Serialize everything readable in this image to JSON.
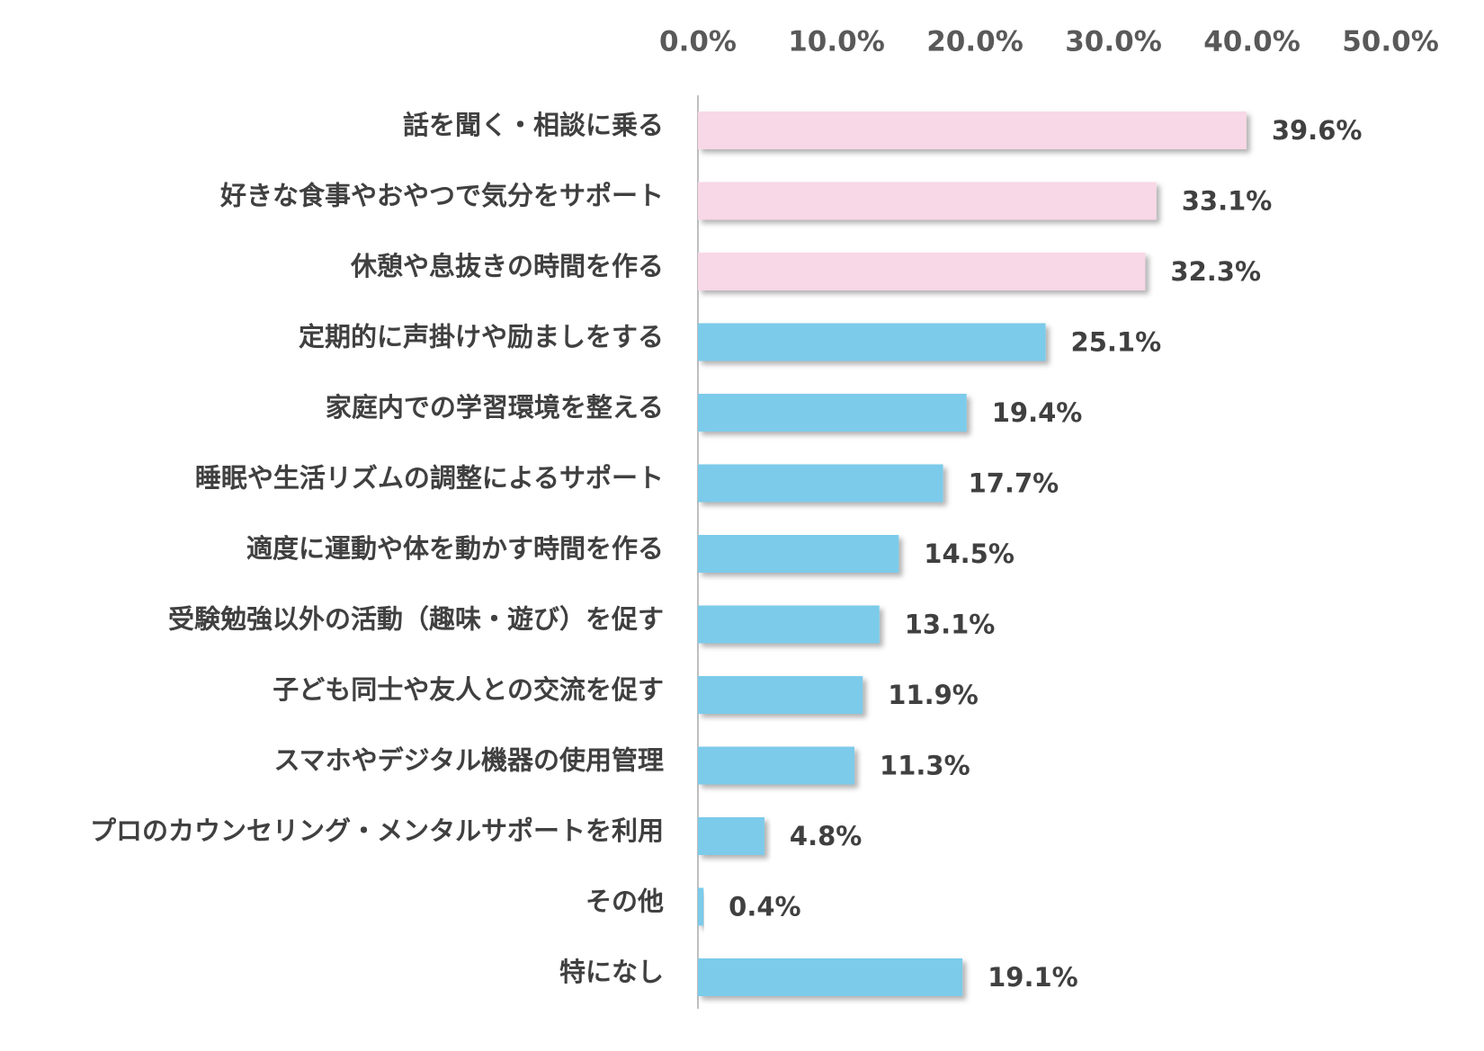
{
  "chart_data": {
    "type": "bar",
    "orientation": "horizontal",
    "categories": [
      "話を聞く・相談に乗る",
      "好きな食事やおやつで気分をサポート",
      "休憩や息抜きの時間を作る",
      "定期的に声掛けや励ましをする",
      "家庭内での学習環境を整える",
      "睡眠や生活リズムの調整によるサポート",
      "適度に運動や体を動かす時間を作る",
      "受験勉強以外の活動（趣味・遊び）を促す",
      "子ども同士や友人との交流を促す",
      "スマホやデジタル機器の使用管理",
      "プロのカウンセリング・メンタルサポートを利用",
      "その他",
      "特になし"
    ],
    "values": [
      39.6,
      33.1,
      32.3,
      25.1,
      19.4,
      17.7,
      14.5,
      13.1,
      11.9,
      11.3,
      4.8,
      0.4,
      19.1
    ],
    "value_labels": [
      "39.6%",
      "33.1%",
      "32.3%",
      "25.1%",
      "19.4%",
      "17.7%",
      "14.5%",
      "13.1%",
      "11.9%",
      "11.3%",
      "4.8%",
      "0.4%",
      "19.1%"
    ],
    "colors": [
      "#f8d7e6",
      "#f8d7e6",
      "#f8d7e6",
      "#7ccbea",
      "#7ccbea",
      "#7ccbea",
      "#7ccbea",
      "#7ccbea",
      "#7ccbea",
      "#7ccbea",
      "#7ccbea",
      "#7ccbea",
      "#7ccbea"
    ],
    "xlim": [
      0,
      50
    ],
    "xticks": [
      {
        "value": 0,
        "label": "0.0%"
      },
      {
        "value": 10,
        "label": "10.0%"
      },
      {
        "value": 20,
        "label": "20.0%"
      },
      {
        "value": 30,
        "label": "30.0%"
      },
      {
        "value": 40,
        "label": "40.0%"
      },
      {
        "value": 50,
        "label": "50.0%"
      }
    ],
    "grid": false
  }
}
